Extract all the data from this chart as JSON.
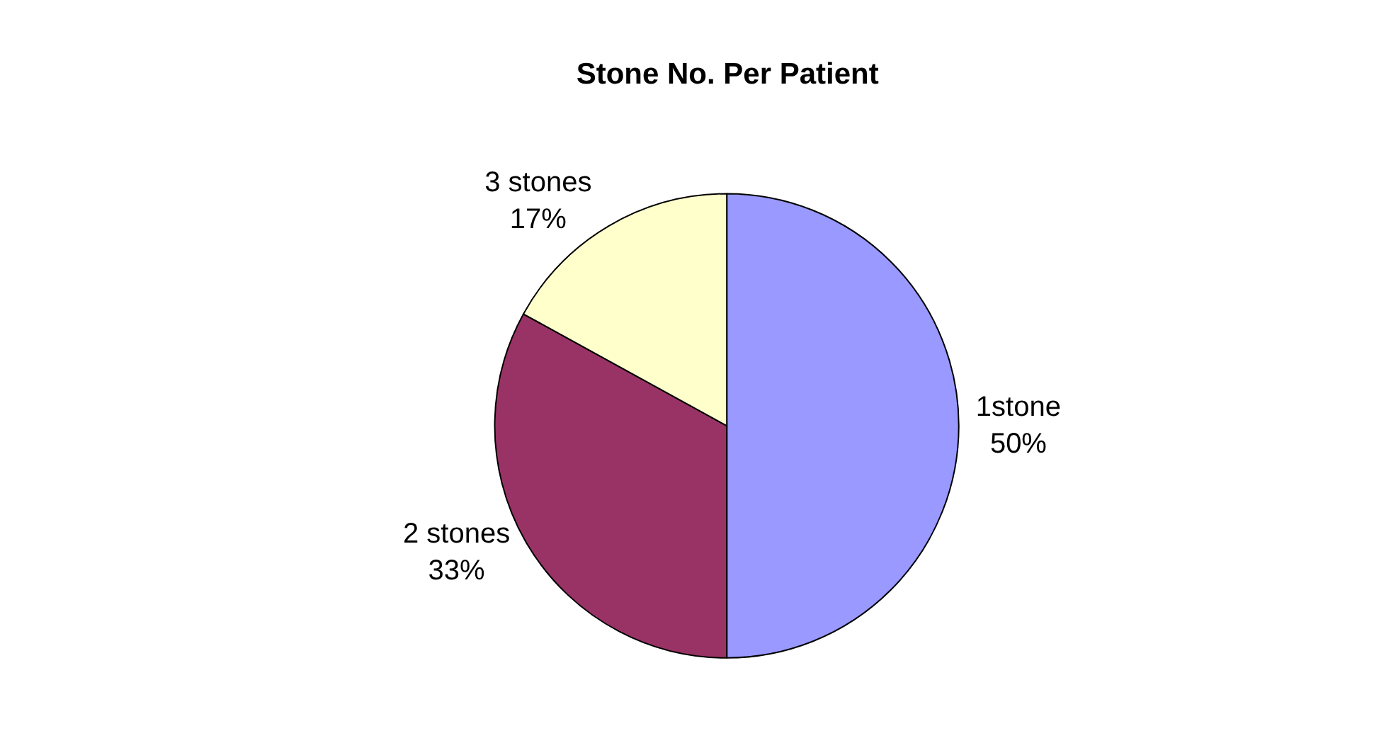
{
  "chart_data": {
    "type": "pie",
    "title": "Stone No. Per Patient",
    "categories": [
      "1stone",
      "2 stones",
      "3 stones"
    ],
    "values": [
      50,
      33,
      17
    ],
    "value_labels": [
      "50%",
      "33%",
      "17%"
    ],
    "colors": [
      "#9999ff",
      "#993366",
      "#ffffcc"
    ],
    "legend": false
  }
}
